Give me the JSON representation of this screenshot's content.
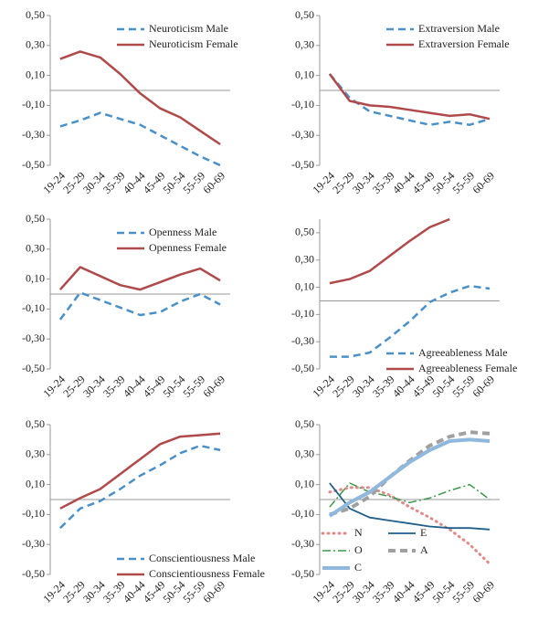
{
  "chart_data": [
    {
      "type": "line",
      "legend": "upper right",
      "categories": [
        "19-24",
        "25-29",
        "30-34",
        "35-39",
        "40-44",
        "45-49",
        "50-54",
        "55-59",
        "60-69"
      ],
      "ylim": [
        -0.5,
        0.5
      ],
      "yticks": [
        {
          "value": 0.5,
          "label": "0,50"
        },
        {
          "value": 0.3,
          "label": "0,30"
        },
        {
          "value": 0.1,
          "label": "0,10"
        },
        {
          "value": -0.1,
          "label": "-0,10"
        },
        {
          "value": -0.3,
          "label": "-0,30"
        },
        {
          "value": -0.5,
          "label": "-0,50"
        }
      ],
      "series": [
        {
          "name": "Neuroticism Male",
          "color": "#4a90c8",
          "style": "dashed",
          "linewidth": 2.5,
          "values": [
            -0.24,
            -0.2,
            -0.15,
            -0.19,
            -0.23,
            -0.3,
            -0.37,
            -0.44,
            -0.5
          ]
        },
        {
          "name": "Neuroticism Female",
          "color": "#b04a4a",
          "style": "solid",
          "linewidth": 2.5,
          "values": [
            0.21,
            0.26,
            0.22,
            0.11,
            -0.02,
            -0.12,
            -0.18,
            -0.27,
            -0.36
          ]
        }
      ]
    },
    {
      "type": "line",
      "legend": "upper right",
      "categories": [
        "19-24",
        "25-29",
        "30-34",
        "35-39",
        "40-44",
        "45-49",
        "50-54",
        "55-59",
        "60-69"
      ],
      "ylim": [
        -0.5,
        0.5
      ],
      "yticks": [
        {
          "value": 0.5,
          "label": "0,50"
        },
        {
          "value": 0.3,
          "label": "0,30"
        },
        {
          "value": 0.1,
          "label": "0,10"
        },
        {
          "value": -0.1,
          "label": "-0,10"
        },
        {
          "value": -0.3,
          "label": "-0,30"
        },
        {
          "value": -0.5,
          "label": "-0,50"
        }
      ],
      "series": [
        {
          "name": "Extraversion Male",
          "color": "#4a90c8",
          "style": "dashed",
          "linewidth": 2.5,
          "values": [
            0.11,
            -0.05,
            -0.14,
            -0.17,
            -0.2,
            -0.23,
            -0.21,
            -0.23,
            -0.19
          ]
        },
        {
          "name": "Extraversion Female",
          "color": "#b04a4a",
          "style": "solid",
          "linewidth": 2.5,
          "values": [
            0.11,
            -0.07,
            -0.1,
            -0.11,
            -0.13,
            -0.15,
            -0.17,
            -0.16,
            -0.19
          ]
        }
      ]
    },
    {
      "type": "line",
      "legend": "upper right",
      "categories": [
        "19-24",
        "25-29",
        "30-34",
        "35-39",
        "40-44",
        "45-49",
        "50-54",
        "55-59",
        "60-69"
      ],
      "ylim": [
        -0.5,
        0.5
      ],
      "yticks": [
        {
          "value": 0.5,
          "label": "0,50"
        },
        {
          "value": 0.3,
          "label": "0,30"
        },
        {
          "value": 0.1,
          "label": "0,10"
        },
        {
          "value": -0.1,
          "label": "-0,10"
        },
        {
          "value": -0.3,
          "label": "-0,30"
        },
        {
          "value": -0.5,
          "label": "-0,50"
        }
      ],
      "series": [
        {
          "name": "Openness Male",
          "color": "#4a90c8",
          "style": "dashed",
          "linewidth": 2.5,
          "values": [
            -0.17,
            0.01,
            -0.04,
            -0.09,
            -0.14,
            -0.12,
            -0.05,
            0.0,
            -0.07
          ]
        },
        {
          "name": "Openness Female",
          "color": "#b04a4a",
          "style": "solid",
          "linewidth": 2.5,
          "values": [
            0.03,
            0.18,
            0.12,
            0.06,
            0.03,
            0.08,
            0.13,
            0.17,
            0.09
          ]
        }
      ]
    },
    {
      "type": "line",
      "legend": "lower right",
      "categories": [
        "19-24",
        "25-29",
        "30-34",
        "35-39",
        "40-44",
        "45-49",
        "50-54",
        "55-59",
        "60-69"
      ],
      "ylim": [
        -0.5,
        0.6
      ],
      "yticks": [
        {
          "value": 0.5,
          "label": "0,50"
        },
        {
          "value": 0.3,
          "label": "0,30"
        },
        {
          "value": 0.1,
          "label": "0,10"
        },
        {
          "value": -0.1,
          "label": "-0,10"
        },
        {
          "value": -0.3,
          "label": "-0,30"
        },
        {
          "value": -0.5,
          "label": "-0,50"
        }
      ],
      "series": [
        {
          "name": "Agreeableness Male",
          "color": "#4a90c8",
          "style": "dashed",
          "linewidth": 2.5,
          "values": [
            -0.41,
            -0.41,
            -0.38,
            -0.27,
            -0.15,
            -0.01,
            0.06,
            0.11,
            0.09
          ]
        },
        {
          "name": "Agreeableness Female",
          "color": "#b04a4a",
          "style": "solid",
          "linewidth": 2.5,
          "values": [
            0.13,
            0.16,
            0.22,
            0.33,
            0.44,
            0.54,
            0.6,
            null,
            null
          ]
        }
      ]
    },
    {
      "type": "line",
      "legend": "lower right",
      "categories": [
        "19-24",
        "25-29",
        "30-34",
        "35-39",
        "40-44",
        "45-49",
        "50-54",
        "55-59",
        "60-69"
      ],
      "ylim": [
        -0.5,
        0.5
      ],
      "yticks": [
        {
          "value": 0.5,
          "label": "0,50"
        },
        {
          "value": 0.3,
          "label": "0,30"
        },
        {
          "value": 0.1,
          "label": "0,10"
        },
        {
          "value": -0.1,
          "label": "-0,10"
        },
        {
          "value": -0.3,
          "label": "-0,30"
        },
        {
          "value": -0.5,
          "label": "-0,50"
        }
      ],
      "series": [
        {
          "name": "Conscientiousness Male",
          "color": "#4a90c8",
          "style": "dashed",
          "linewidth": 2.5,
          "values": [
            -0.19,
            -0.06,
            -0.01,
            0.07,
            0.16,
            0.23,
            0.31,
            0.36,
            0.33
          ]
        },
        {
          "name": "Conscientiousness Female",
          "color": "#b04a4a",
          "style": "solid",
          "linewidth": 2.5,
          "values": [
            -0.06,
            0.01,
            0.07,
            0.17,
            0.27,
            0.37,
            0.42,
            0.43,
            0.44
          ]
        }
      ]
    },
    {
      "type": "line",
      "legend": "lower left",
      "categories": [
        "19-24",
        "25-29",
        "30-34",
        "35-39",
        "40-44",
        "45-49",
        "50-54",
        "55-59",
        "60-69"
      ],
      "ylim": [
        -0.5,
        0.5
      ],
      "yticks": [
        {
          "value": 0.5,
          "label": "0,50"
        },
        {
          "value": 0.3,
          "label": "0,30"
        },
        {
          "value": 0.1,
          "label": "0,10"
        },
        {
          "value": -0.1,
          "label": "-0,10"
        },
        {
          "value": -0.3,
          "label": "-0,30"
        },
        {
          "value": -0.5,
          "label": "-0,50"
        }
      ],
      "series": [
        {
          "name": "N",
          "color": "#e08a8a",
          "style": "dotted",
          "linewidth": 3,
          "values": [
            0.05,
            0.08,
            0.08,
            0.03,
            -0.05,
            -0.12,
            -0.2,
            -0.3,
            -0.43
          ]
        },
        {
          "name": "E",
          "color": "#1f5f8b",
          "style": "solid",
          "linewidth": 1.8,
          "values": [
            0.11,
            -0.06,
            -0.12,
            -0.14,
            -0.16,
            -0.18,
            -0.19,
            -0.19,
            -0.2
          ]
        },
        {
          "name": "O",
          "color": "#3a9a4a",
          "style": "dashdot",
          "linewidth": 1.5,
          "values": [
            -0.05,
            0.11,
            0.05,
            0.02,
            -0.02,
            0.01,
            0.06,
            0.1,
            0.0
          ]
        },
        {
          "name": "A",
          "color": "#a0a0a0",
          "style": "dashed",
          "linewidth": 4,
          "values": [
            -0.1,
            -0.06,
            0.02,
            0.15,
            0.26,
            0.36,
            0.42,
            0.45,
            0.44
          ]
        },
        {
          "name": "C",
          "color": "#8fb8dc",
          "style": "solid",
          "linewidth": 4,
          "values": [
            -0.11,
            -0.02,
            0.05,
            0.15,
            0.25,
            0.33,
            0.39,
            0.4,
            0.39
          ]
        }
      ]
    }
  ]
}
